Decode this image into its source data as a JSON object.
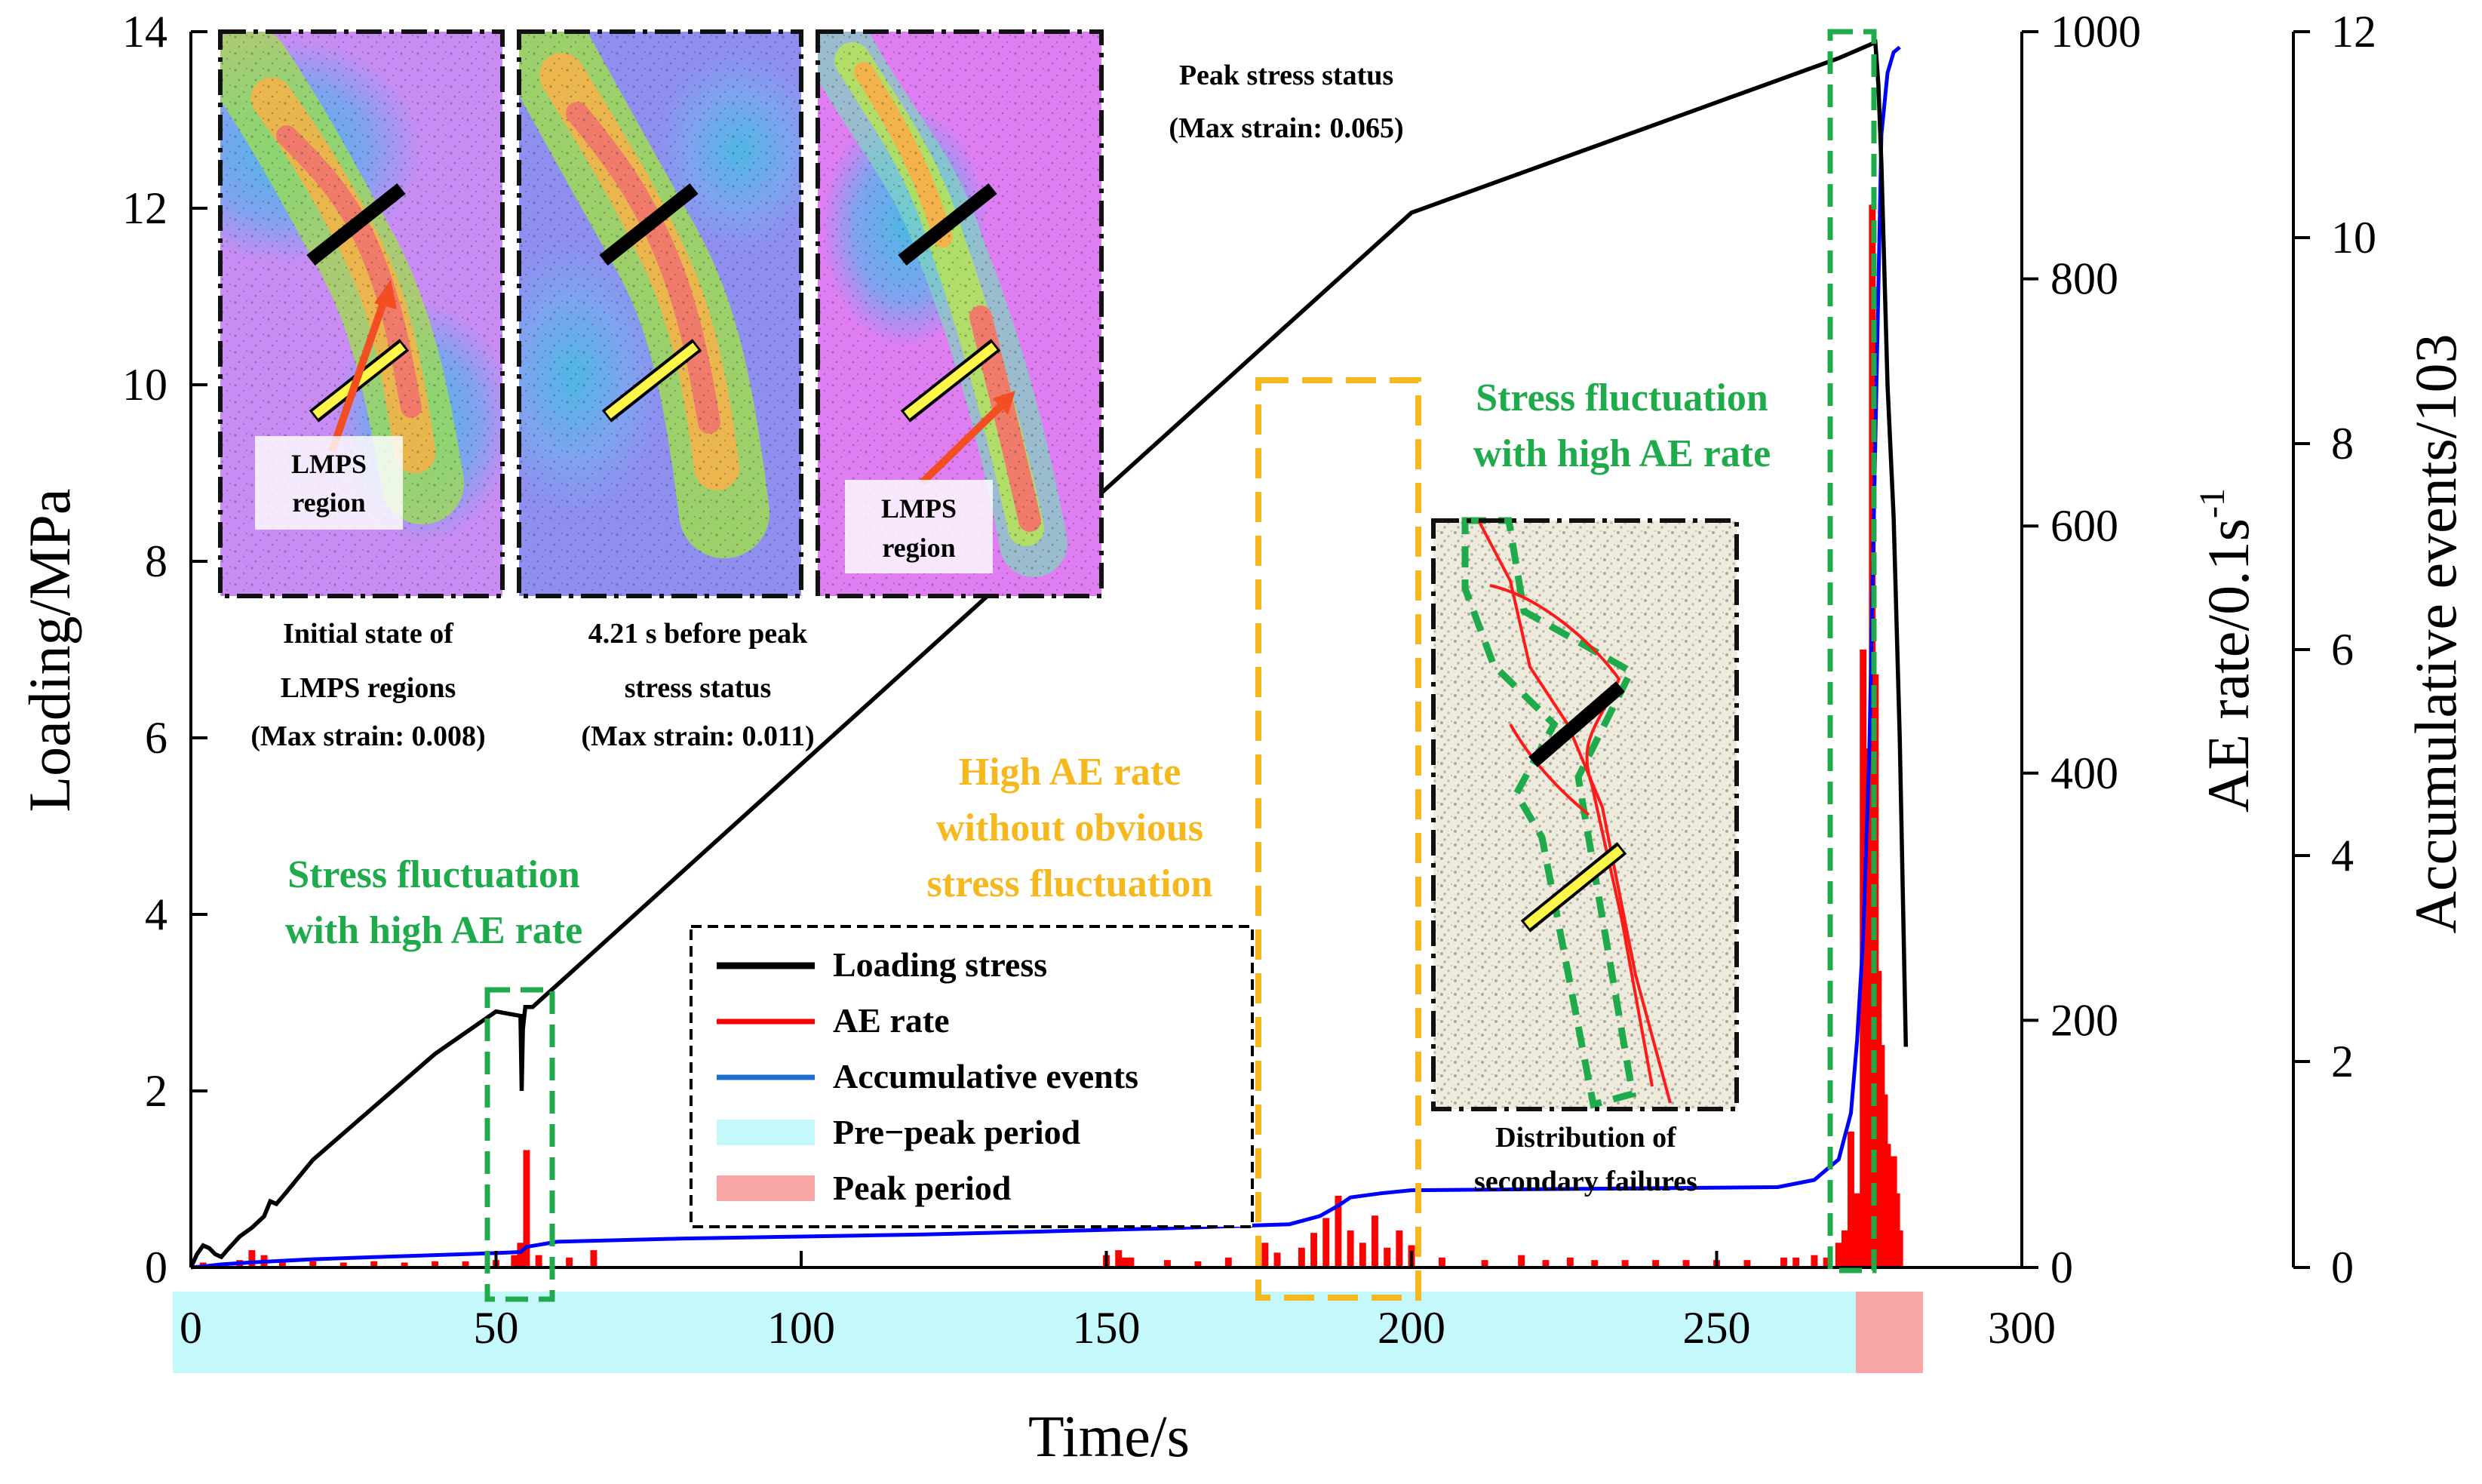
{
  "chart_data": {
    "type": "line",
    "xlabel": "Time/s",
    "ylabel_left": "Loading/MPa",
    "ylabel_right1": "AE rate/0.1s",
    "ylabel_right1_sup": "-1",
    "ylabel_right2": "Accumulative events/103",
    "xlim": [
      0,
      300
    ],
    "ylim_left": [
      0,
      14
    ],
    "ylim_right1": [
      0,
      1000
    ],
    "ylim_right2": [
      0,
      12
    ],
    "x_ticks": [
      0,
      50,
      100,
      150,
      200,
      250,
      300
    ],
    "x_tick_labels": [
      "0",
      "50",
      "100",
      "150",
      "200",
      "250",
      "300"
    ],
    "y_left_ticks": [
      0,
      2,
      4,
      6,
      8,
      10,
      12,
      14
    ],
    "y_left_tick_labels": [
      "0",
      "2",
      "4",
      "6",
      "8",
      "10",
      "12",
      "14"
    ],
    "y_right1_ticks": [
      0,
      200,
      400,
      600,
      800,
      1000
    ],
    "y_right1_tick_labels": [
      "0",
      "200",
      "400",
      "600",
      "800",
      "1000"
    ],
    "y_right2_ticks": [
      0,
      2,
      4,
      6,
      8,
      10,
      12
    ],
    "y_right2_tick_labels": [
      "0",
      "2",
      "4",
      "6",
      "8",
      "10",
      "12"
    ],
    "series": [
      {
        "name": "Loading stress",
        "axis": "left",
        "color": "#000000",
        "x": [
          0,
          1,
          2,
          3,
          4,
          5,
          6,
          8,
          10,
          12,
          13,
          14,
          15,
          20,
          30,
          40,
          50,
          54.0,
          54.2,
          54.4,
          54.8,
          56,
          60,
          80,
          100,
          120,
          140,
          160,
          180,
          200,
          220,
          240,
          260,
          270,
          275,
          276,
          276.5,
          277,
          278,
          279,
          280,
          281
        ],
        "y": [
          0,
          0.15,
          0.25,
          0.22,
          0.15,
          0.12,
          0.2,
          0.35,
          0.45,
          0.58,
          0.75,
          0.72,
          0.8,
          1.22,
          1.82,
          2.42,
          2.9,
          2.85,
          2.0,
          2.7,
          2.95,
          2.95,
          3.2,
          4.45,
          5.7,
          6.95,
          8.2,
          9.45,
          10.7,
          11.95,
          12.45,
          12.95,
          13.45,
          13.7,
          13.85,
          13.88,
          13.4,
          12.5,
          10.0,
          8.5,
          6.0,
          2.5
        ]
      },
      {
        "name": "AE rate",
        "axis": "right1",
        "color": "#ff0000",
        "type": "bar",
        "x": [
          2,
          8,
          10,
          12,
          15,
          20,
          25,
          30,
          35,
          40,
          45,
          50,
          53,
          54,
          55,
          57,
          62,
          66,
          150,
          152,
          153,
          154,
          160,
          165,
          170,
          176,
          178,
          182,
          184,
          186,
          188,
          190,
          192,
          194,
          196,
          198,
          200,
          205,
          212,
          218,
          222,
          226,
          230,
          235,
          240,
          245,
          250,
          255,
          261,
          263,
          266,
          268,
          270,
          271,
          272,
          273,
          274,
          274.5,
          275,
          275.5,
          276,
          276.5,
          277,
          277.5,
          278,
          278.5,
          279,
          279.5,
          280
        ],
        "y": [
          4,
          6,
          14,
          10,
          6,
          5,
          4,
          5,
          4,
          5,
          5,
          6,
          10,
          20,
          95,
          10,
          8,
          14,
          10,
          14,
          8,
          8,
          6,
          5,
          8,
          20,
          12,
          16,
          28,
          40,
          58,
          30,
          20,
          42,
          16,
          30,
          18,
          8,
          6,
          10,
          6,
          8,
          6,
          6,
          6,
          6,
          6,
          6,
          8,
          8,
          10,
          8,
          20,
          30,
          110,
          60,
          500,
          310,
          420,
          860,
          480,
          240,
          180,
          140,
          100,
          60,
          90,
          60,
          30
        ]
      },
      {
        "name": "Accumulative events",
        "axis": "right2",
        "color": "#0000ff",
        "x": [
          0,
          2,
          5,
          10,
          20,
          30,
          40,
          50,
          54,
          55,
          60,
          80,
          100,
          120,
          140,
          160,
          180,
          185,
          188,
          190,
          195,
          200,
          220,
          240,
          260,
          266,
          268,
          270,
          272,
          273,
          274,
          275,
          276,
          277,
          278,
          279,
          280
        ],
        "y": [
          0,
          0.01,
          0.03,
          0.05,
          0.08,
          0.1,
          0.12,
          0.14,
          0.15,
          0.2,
          0.25,
          0.28,
          0.3,
          0.32,
          0.35,
          0.38,
          0.42,
          0.5,
          0.6,
          0.68,
          0.72,
          0.75,
          0.76,
          0.77,
          0.78,
          0.85,
          0.95,
          1.05,
          1.5,
          2.2,
          3.2,
          5.0,
          8.0,
          11.0,
          11.6,
          11.8,
          11.85
        ]
      }
    ],
    "periods": [
      {
        "name": "Pre−peak period",
        "x_start": -3,
        "x_end": 272.8,
        "color": "#c5f8fb"
      },
      {
        "name": "Peak period",
        "x_start": 272.8,
        "x_end": 283.8,
        "color": "#f9a6a6"
      }
    ],
    "legend": {
      "position": "bottom-center",
      "entries": [
        {
          "label": "Loading stress",
          "kind": "line",
          "color": "#000000"
        },
        {
          "label": "AE rate",
          "kind": "line",
          "color": "#ff0000"
        },
        {
          "label": "Accumulative events",
          "kind": "line",
          "color": "#1e6fcf"
        },
        {
          "label": "Pre−peak period",
          "kind": "patch",
          "color": "#c5f8fb"
        },
        {
          "label": "Peak period",
          "kind": "patch",
          "color": "#f9a6a6"
        }
      ]
    },
    "annotations": {
      "box_left": {
        "lines": [
          "Stress fluctuation",
          "with high AE rate"
        ],
        "color": "#1fab4b"
      },
      "box_middle": {
        "lines": [
          "High AE rate",
          "without obvious",
          "stress fluctuation"
        ],
        "color": "#f5b81e"
      },
      "box_right": {
        "lines": [
          "Stress fluctuation",
          "with high AE rate"
        ],
        "color": "#1fab4b"
      },
      "peak_status": [
        "Peak stress status",
        "(Max strain:  0.065)"
      ],
      "inset1_caption": [
        "Initial state of",
        "LMPS regions",
        "(Max strain: 0.008)"
      ],
      "inset2_caption": [
        "4.21 s before peak",
        "stress status",
        "(Max strain:  0.011)"
      ],
      "inset1_label": [
        "LMPS",
        "region"
      ],
      "inset3_label": [
        "LMPS",
        "region"
      ],
      "inset4_caption": [
        "Distribution of",
        "secondary failures"
      ]
    }
  }
}
